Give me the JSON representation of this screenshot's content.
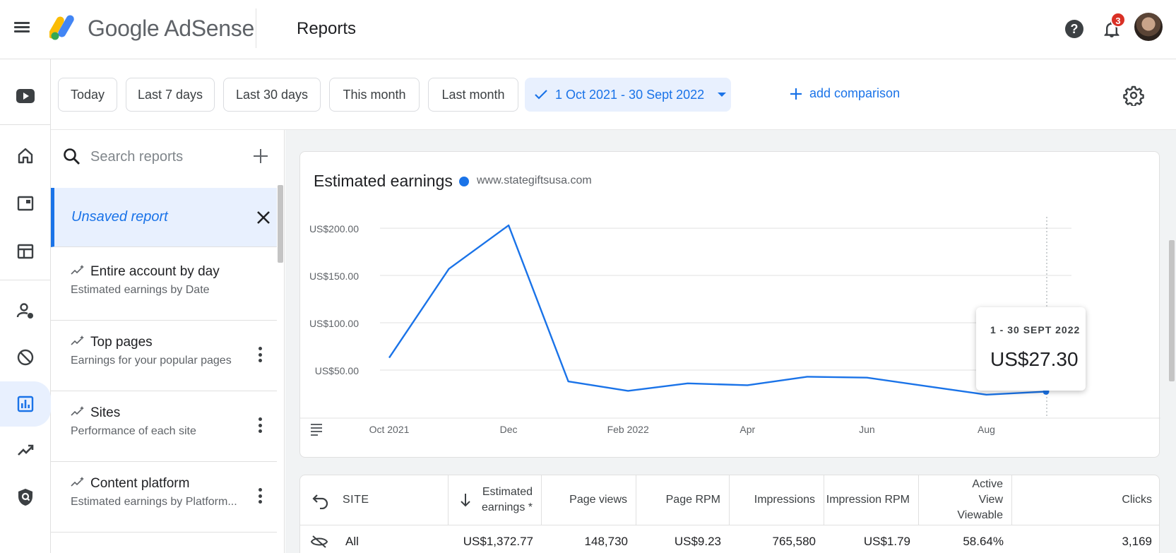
{
  "header": {
    "brand": "Google AdSense",
    "page_title": "Reports",
    "notification_count": "3"
  },
  "rail": {
    "items": [
      "youtube-icon",
      "home-icon",
      "ads-icon",
      "sites-icon",
      "account-icon",
      "blocking-icon",
      "reports-icon",
      "optimization-icon",
      "privacy-icon"
    ],
    "active": "reports-icon"
  },
  "filters": {
    "chips": [
      "Today",
      "Last 7 days",
      "Last 30 days",
      "This month",
      "Last month"
    ],
    "selected_range": "1 Oct 2021 - 30 Sept 2022",
    "add_comparison": "add comparison"
  },
  "reports": {
    "search_placeholder": "Search reports",
    "unsaved": "Unsaved report",
    "items": [
      {
        "title": "Entire account by day",
        "subtitle": "Estimated earnings by Date"
      },
      {
        "title": "Top pages",
        "subtitle": "Earnings for your popular pages"
      },
      {
        "title": "Sites",
        "subtitle": "Performance of each site"
      },
      {
        "title": "Content platform",
        "subtitle": "Estimated earnings by Platform..."
      }
    ]
  },
  "chart": {
    "title": "Estimated earnings",
    "legend": "www.stategiftsusa.com",
    "tooltip_date": "1 - 30 SEPT 2022",
    "tooltip_value": "US$27.30"
  },
  "chart_data": {
    "type": "line",
    "title": "Estimated earnings",
    "x": [
      "Oct 2021",
      "Nov 2021",
      "Dec 2021",
      "Jan 2022",
      "Feb 2022",
      "Mar 2022",
      "Apr 2022",
      "May 2022",
      "Jun 2022",
      "Jul 2022",
      "Aug 2022",
      "Sep 2022"
    ],
    "series": [
      {
        "name": "www.stategiftsusa.com",
        "color": "#1a73e8",
        "values": [
          63,
          157,
          203,
          38,
          28,
          36,
          34,
          43,
          42,
          33,
          24,
          27.3
        ]
      }
    ],
    "x_tick_labels": [
      "Oct 2021",
      "Dec",
      "Feb 2022",
      "Apr",
      "Jun",
      "Aug"
    ],
    "y_tick_labels": [
      "US$200.00",
      "US$150.00",
      "US$100.00",
      "US$50.00"
    ],
    "y_ticks": [
      200,
      150,
      100,
      50
    ],
    "ylim": [
      0,
      212
    ],
    "grid": true,
    "legend_position": "top-left"
  },
  "table": {
    "columns": [
      "SITE",
      "Estimated earnings *",
      "Page views",
      "Page RPM",
      "Impressions",
      "Impression RPM",
      "Active View Viewable",
      "Clicks"
    ],
    "rows": [
      [
        "All",
        "US$1,372.77",
        "148,730",
        "US$9.23",
        "765,580",
        "US$1.79",
        "58.64%",
        "3,169"
      ]
    ]
  },
  "colors": {
    "accent": "#1a73e8",
    "selected_bg": "#e8f0fe",
    "badge": "#d93025"
  }
}
